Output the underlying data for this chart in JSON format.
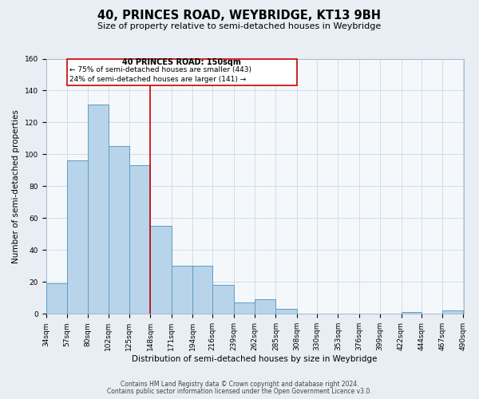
{
  "title": "40, PRINCES ROAD, WEYBRIDGE, KT13 9BH",
  "subtitle": "Size of property relative to semi-detached houses in Weybridge",
  "xlabel": "Distribution of semi-detached houses by size in Weybridge",
  "ylabel": "Number of semi-detached properties",
  "bar_edges": [
    34,
    57,
    80,
    102,
    125,
    148,
    171,
    194,
    216,
    239,
    262,
    285,
    308,
    330,
    353,
    376,
    399,
    422,
    444,
    467,
    490
  ],
  "bar_heights": [
    19,
    96,
    131,
    105,
    93,
    55,
    30,
    30,
    18,
    7,
    9,
    3,
    0,
    0,
    0,
    0,
    0,
    1,
    0,
    2
  ],
  "bar_color": "#b8d4ea",
  "bar_edge_color": "#5a9cc5",
  "property_line_x": 148,
  "property_line_color": "#cc0000",
  "annotation_box_color": "#cc0000",
  "annotation_text_line1": "40 PRINCES ROAD: 150sqm",
  "annotation_text_line2": "← 75% of semi-detached houses are smaller (443)",
  "annotation_text_line3": "24% of semi-detached houses are larger (141) →",
  "ylim": [
    0,
    160
  ],
  "xlim": [
    34,
    490
  ],
  "yticks": [
    0,
    20,
    40,
    60,
    80,
    100,
    120,
    140,
    160
  ],
  "footer_line1": "Contains HM Land Registry data © Crown copyright and database right 2024.",
  "footer_line2": "Contains public sector information licensed under the Open Government Licence v3.0.",
  "background_color": "#e8eef4",
  "plot_background_color": "#f5f8fb",
  "grid_color": "#c8d8e8",
  "title_fontsize": 10.5,
  "subtitle_fontsize": 8,
  "axis_label_fontsize": 7.5,
  "tick_fontsize": 6.5,
  "footer_fontsize": 5.5
}
